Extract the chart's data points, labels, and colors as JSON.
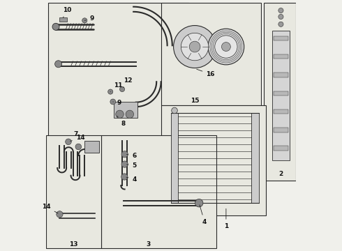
{
  "bg_color": "#f0f0eb",
  "line_color": "#2a2a2a",
  "box_color": "#e8e8e0",
  "fig_width": 4.9,
  "fig_height": 3.6,
  "dpi": 100
}
